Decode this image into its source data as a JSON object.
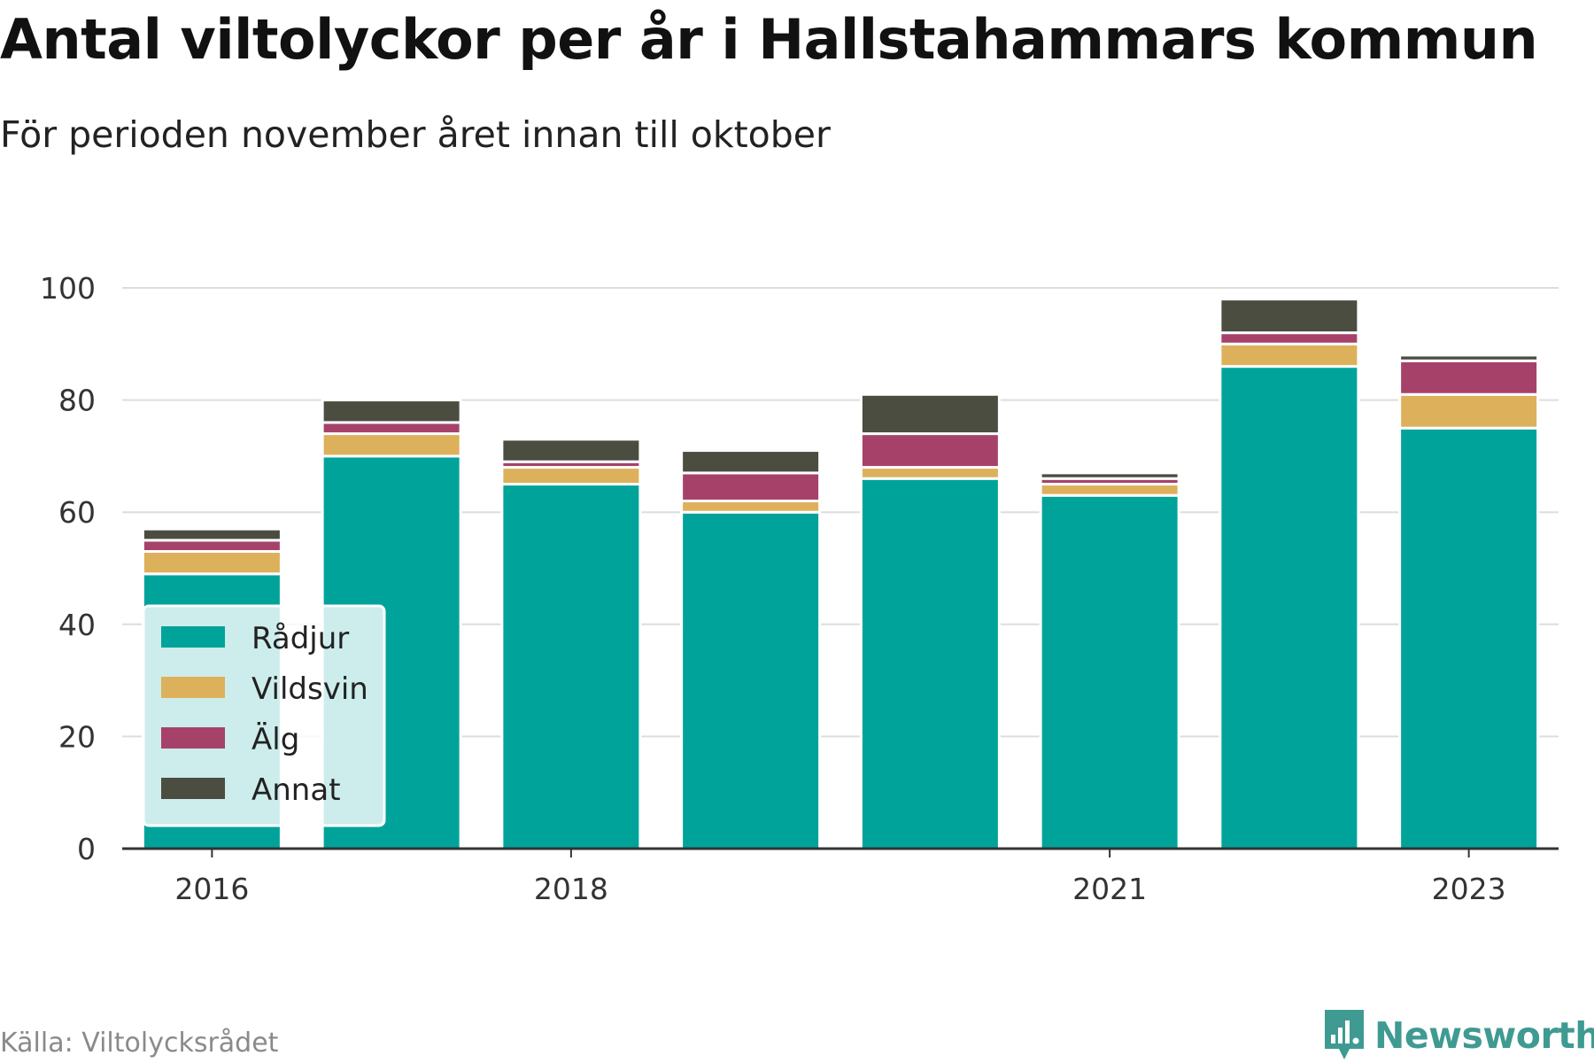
{
  "title": "Antal viltolyckor per år i Hallstahammars kommun",
  "subtitle": "För perioden november året innan till oktober",
  "source": "Källa: Viltolycksrådet",
  "brand": {
    "name": "Newsworthy",
    "icon": "newsworthy-logo-icon",
    "color": "#3f9a92"
  },
  "chart_data": {
    "type": "bar",
    "stacked": true,
    "categories": [
      "2016",
      "2017",
      "2018",
      "2019",
      "2020",
      "2021",
      "2022",
      "2023"
    ],
    "x_tick_labels": [
      "2016",
      "",
      "2018",
      "",
      "",
      "2021",
      "",
      "2023"
    ],
    "series": [
      {
        "name": "Rådjur",
        "color": "#00a39a",
        "values": [
          49,
          70,
          65,
          60,
          66,
          63,
          86,
          75
        ]
      },
      {
        "name": "Vildsvin",
        "color": "#ddb05b",
        "values": [
          4,
          4,
          3,
          2,
          2,
          2,
          4,
          6
        ]
      },
      {
        "name": "Älg",
        "color": "#a6426a",
        "values": [
          2,
          2,
          1,
          5,
          6,
          1,
          2,
          6
        ]
      },
      {
        "name": "Annat",
        "color": "#4a4d40",
        "values": [
          2,
          4,
          4,
          4,
          7,
          1,
          6,
          1
        ]
      }
    ],
    "ylim": [
      0,
      100
    ],
    "yticks": [
      0,
      20,
      40,
      60,
      80,
      100
    ],
    "grid": true,
    "legend": "bottom-left"
  }
}
